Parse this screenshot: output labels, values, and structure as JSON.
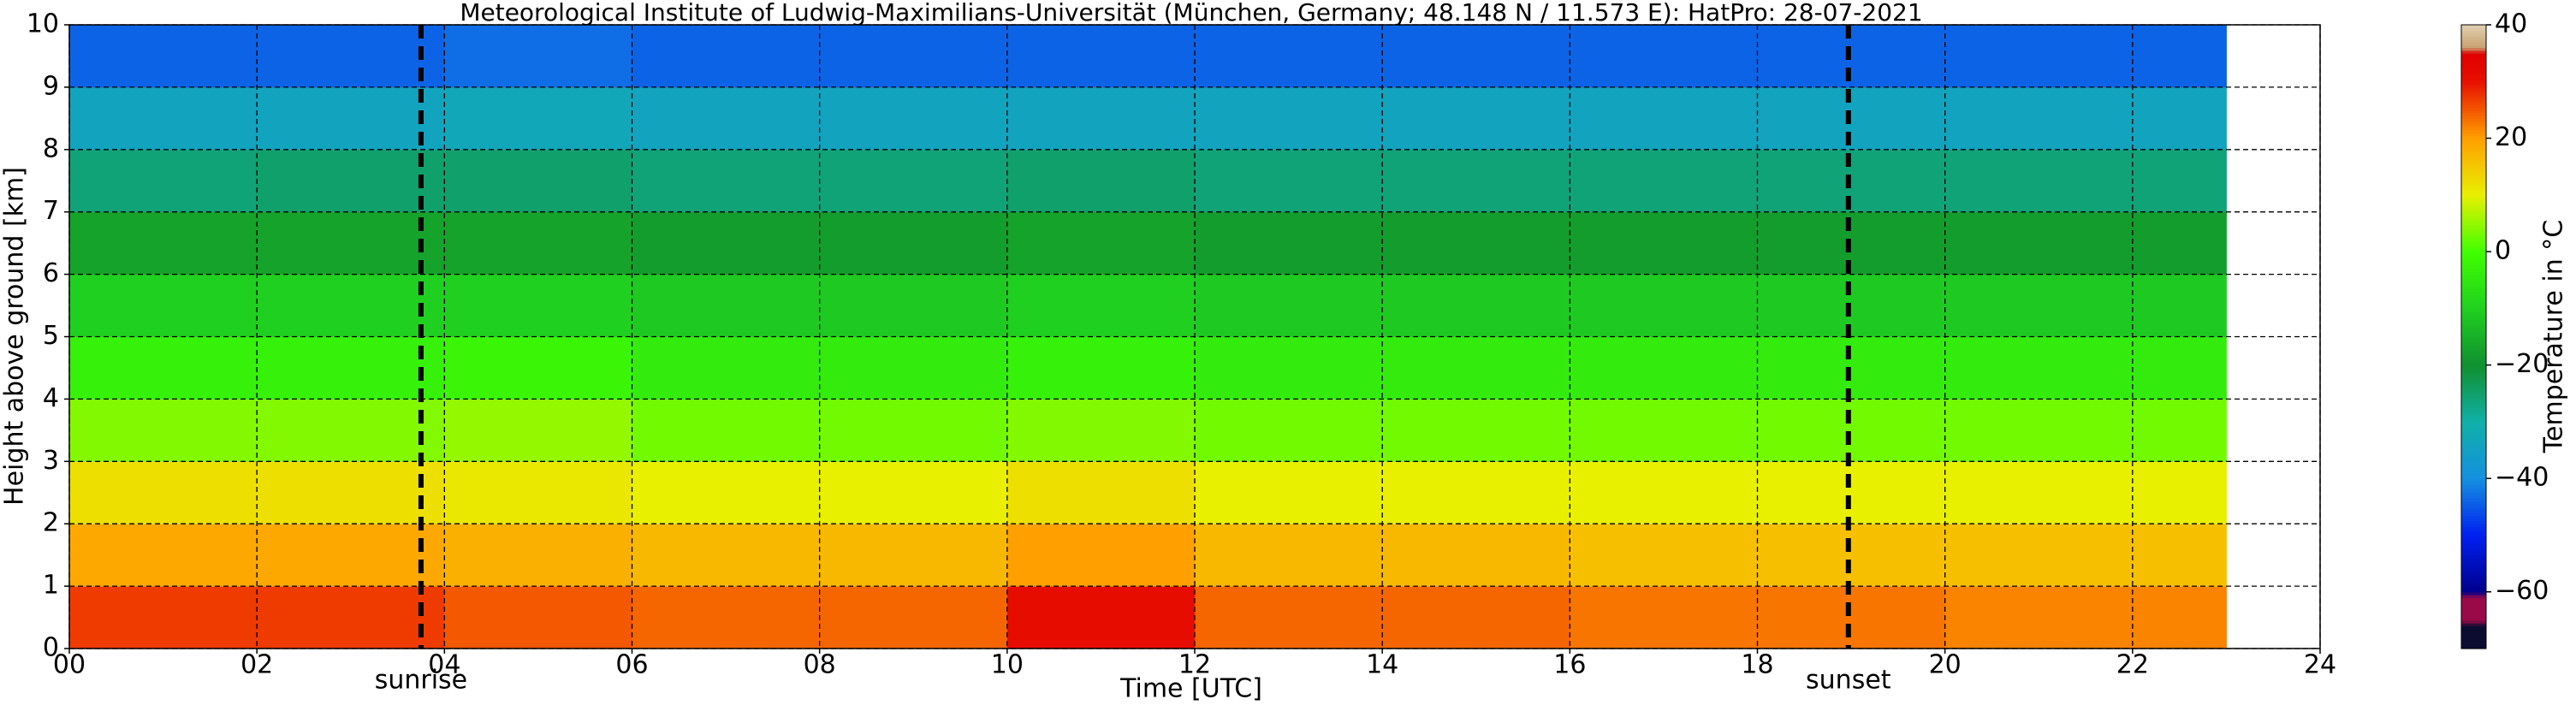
{
  "chart_data": {
    "type": "heatmap",
    "title": "Meteorological Institute of Ludwig-Maximilians-Universität (München, Germany; 48.148 N / 11.573 E):    HatPro: 28-07-2021",
    "xlabel": "Time [UTC]",
    "ylabel": "Height above ground [km]",
    "colorbar_label": "Temperature in °C",
    "x_edges": [
      0,
      2,
      4,
      6,
      8,
      10,
      12,
      14,
      16,
      18,
      20,
      22,
      23
    ],
    "y_edges": [
      0,
      1,
      2,
      3,
      4,
      5,
      6,
      7,
      8,
      9,
      10
    ],
    "z": [
      [
        27,
        27,
        25,
        24,
        24,
        31,
        24,
        24,
        23,
        23,
        22,
        22
      ],
      [
        19,
        19,
        18,
        17,
        17,
        20,
        17,
        17,
        16,
        16,
        16,
        16
      ],
      [
        12,
        12,
        11,
        10,
        10,
        12,
        10,
        10,
        10,
        10,
        10,
        10
      ],
      [
        4,
        4,
        5,
        3,
        3,
        4,
        3,
        3,
        3,
        3,
        3,
        3
      ],
      [
        -3,
        -3,
        -2,
        -4,
        -4,
        -3,
        -4,
        -4,
        -4,
        -4,
        -4,
        -4
      ],
      [
        -10,
        -10,
        -10,
        -11,
        -11,
        -10,
        -11,
        -11,
        -11,
        -11,
        -11,
        -11
      ],
      [
        -17,
        -17,
        -17,
        -18,
        -18,
        -17,
        -18,
        -18,
        -18,
        -18,
        -18,
        -18
      ],
      [
        -26,
        -25,
        -25,
        -26,
        -26,
        -25,
        -26,
        -26,
        -26,
        -26,
        -26,
        -26
      ],
      [
        -34,
        -34,
        -33,
        -34,
        -34,
        -34,
        -34,
        -34,
        -34,
        -34,
        -34,
        -34
      ],
      [
        -44,
        -44,
        -43,
        -44,
        -44,
        -44,
        -44,
        -44,
        -44,
        -44,
        -44,
        -44
      ]
    ],
    "xlim": [
      0,
      24
    ],
    "ylim": [
      0,
      10
    ],
    "xticks": [
      {
        "value": 0,
        "label": "00"
      },
      {
        "value": 2,
        "label": "02"
      },
      {
        "value": 4,
        "label": "04"
      },
      {
        "value": 6,
        "label": "06"
      },
      {
        "value": 8,
        "label": "08"
      },
      {
        "value": 10,
        "label": "10"
      },
      {
        "value": 12,
        "label": "12"
      },
      {
        "value": 14,
        "label": "14"
      },
      {
        "value": 16,
        "label": "16"
      },
      {
        "value": 18,
        "label": "18"
      },
      {
        "value": 20,
        "label": "20"
      },
      {
        "value": 22,
        "label": "22"
      },
      {
        "value": 24,
        "label": "24"
      }
    ],
    "yticks": [
      0,
      1,
      2,
      3,
      4,
      5,
      6,
      7,
      8,
      9,
      10
    ],
    "clim": [
      -70,
      40
    ],
    "cticks": [
      {
        "value": -60,
        "label": "−60"
      },
      {
        "value": -40,
        "label": "−40"
      },
      {
        "value": -20,
        "label": "−20"
      },
      0,
      20,
      40
    ],
    "colorscale": [
      [
        -70,
        "#0c0c30"
      ],
      [
        -66,
        "#0c0c30"
      ],
      [
        -65,
        "#9a0a48"
      ],
      [
        -61,
        "#9a0a48"
      ],
      [
        -60,
        "#00008c"
      ],
      [
        -50,
        "#0020f0"
      ],
      [
        -40,
        "#1590e0"
      ],
      [
        -30,
        "#10b0a8"
      ],
      [
        -20,
        "#109030"
      ],
      [
        -10,
        "#20d020"
      ],
      [
        0,
        "#40ff00"
      ],
      [
        10,
        "#e8f000"
      ],
      [
        20,
        "#ffa000"
      ],
      [
        30,
        "#e81000"
      ],
      [
        35,
        "#e00000"
      ],
      [
        36,
        "#c8a070"
      ],
      [
        40,
        "#e0d0b0"
      ]
    ],
    "grid": true,
    "annotations": [
      {
        "text": "sunrise",
        "x": 3.75
      },
      {
        "text": "sunset",
        "x": 18.97
      }
    ]
  }
}
